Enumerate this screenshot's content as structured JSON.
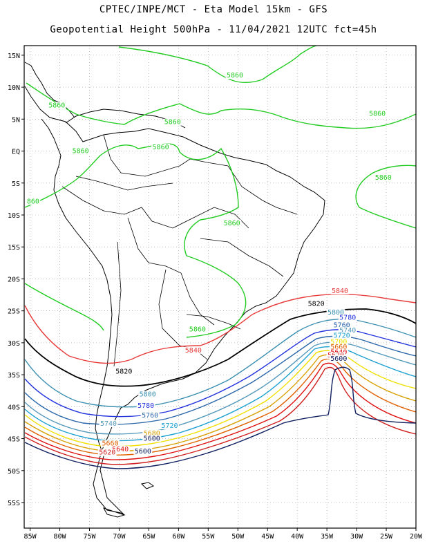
{
  "title": {
    "line1": "CPTEC/INPE/MCT -  Eta Model 15km - GFS",
    "line2": "Geopotential Height 500hPa - 11/04/2021 12UTC fct=45h"
  },
  "axes": {
    "lon_ticks": [
      "85W",
      "80W",
      "75W",
      "70W",
      "65W",
      "60W",
      "55W",
      "50W",
      "45W",
      "40W",
      "35W",
      "30W",
      "25W",
      "20W"
    ],
    "lat_ticks": [
      "15N",
      "10N",
      "5N",
      "EQ",
      "5S",
      "10S",
      "15S",
      "20S",
      "25S",
      "30S",
      "35S",
      "40S",
      "45S",
      "50S",
      "55S"
    ],
    "lon_values": [
      -85,
      -80,
      -75,
      -70,
      -65,
      -60,
      -55,
      -50,
      -45,
      -40,
      -35,
      -30,
      -25,
      -20
    ],
    "lat_values": [
      15,
      10,
      5,
      0,
      -5,
      -10,
      -15,
      -20,
      -25,
      -30,
      -35,
      -40,
      -45,
      -50,
      -55
    ],
    "lon_range": [
      -86,
      -20
    ],
    "lat_range": [
      -59,
      16.5
    ],
    "grid": true
  },
  "contours": [
    {
      "level": "5860",
      "color": "#22cc22"
    },
    {
      "level": "5840",
      "color": "#e83a3a"
    },
    {
      "level": "5820",
      "color": "#000000"
    },
    {
      "level": "5800",
      "color": "#3a8fb0"
    },
    {
      "level": "5780",
      "color": "#2233dd"
    },
    {
      "level": "5760",
      "color": "#2a66aa"
    },
    {
      "level": "5740",
      "color": "#5599bb"
    },
    {
      "level": "5720",
      "color": "#1aa0d0"
    },
    {
      "level": "5700",
      "color": "#f0e000"
    },
    {
      "level": "5680",
      "color": "#d8a000"
    },
    {
      "level": "5660",
      "color": "#e06000"
    },
    {
      "level": "5640",
      "color": "#e01010"
    },
    {
      "level": "5620",
      "color": "#d02020"
    },
    {
      "level": "5600",
      "color": "#102060"
    }
  ],
  "labels": [
    {
      "text": "5860",
      "lon": -50.5,
      "lat": 11.5,
      "color": "#22cc22"
    },
    {
      "text": "5860",
      "lon": -80.5,
      "lat": 6.8,
      "color": "#22cc22"
    },
    {
      "text": "5860",
      "lon": -26.5,
      "lat": 5.5,
      "color": "#22cc22"
    },
    {
      "text": "5860",
      "lon": -61,
      "lat": 4.2,
      "color": "#22cc22"
    },
    {
      "text": "5860",
      "lon": -63,
      "lat": 0.3,
      "color": "#22cc22"
    },
    {
      "text": "5860",
      "lon": -76.5,
      "lat": -0.3,
      "color": "#22cc22"
    },
    {
      "text": "5860",
      "lon": -25.5,
      "lat": -4.5,
      "color": "#22cc22"
    },
    {
      "text": "860",
      "lon": -84.5,
      "lat": -8.2,
      "color": "#22cc22"
    },
    {
      "text": "5860",
      "lon": -51,
      "lat": -11.6,
      "color": "#22cc22"
    },
    {
      "text": "5860",
      "lon": -56.8,
      "lat": -28.2,
      "color": "#22cc22"
    },
    {
      "text": "5840",
      "lon": -57.5,
      "lat": -31.5,
      "color": "#e83a3a"
    },
    {
      "text": "5840",
      "lon": -32.8,
      "lat": -22.2,
      "color": "#e83a3a"
    },
    {
      "text": "5820",
      "lon": -36.8,
      "lat": -24.2,
      "color": "#000000"
    },
    {
      "text": "5800",
      "lon": -33.5,
      "lat": -25.6,
      "color": "#3a8fb0"
    },
    {
      "text": "5780",
      "lon": -31.5,
      "lat": -26.4,
      "color": "#2233dd"
    },
    {
      "text": "5760",
      "lon": -32.5,
      "lat": -27.6,
      "color": "#2a66aa"
    },
    {
      "text": "5740",
      "lon": -31.5,
      "lat": -28.4,
      "color": "#5599bb"
    },
    {
      "text": "5720",
      "lon": -32.5,
      "lat": -29.2,
      "color": "#1aa0d0"
    },
    {
      "text": "5700",
      "lon": -33,
      "lat": -30.2,
      "color": "#f0e000"
    },
    {
      "text": "5660",
      "lon": -33,
      "lat": -31.0,
      "color": "#e06000"
    },
    {
      "text": "5640",
      "lon": -33,
      "lat": -31.8,
      "color": "#e01010"
    },
    {
      "text": "5620",
      "lon": -33.5,
      "lat": -32.3,
      "color": "#d02020"
    },
    {
      "text": "5600",
      "lon": -33,
      "lat": -32.8,
      "color": "#102060"
    },
    {
      "text": "5820",
      "lon": -69.2,
      "lat": -34.8,
      "color": "#000000"
    },
    {
      "text": "5800",
      "lon": -65.2,
      "lat": -38.4,
      "color": "#3a8fb0"
    },
    {
      "text": "5780",
      "lon": -65.5,
      "lat": -40.2,
      "color": "#2233dd"
    },
    {
      "text": "5760",
      "lon": -64.8,
      "lat": -41.7,
      "color": "#2a66aa"
    },
    {
      "text": "5740",
      "lon": -71.8,
      "lat": -43.0,
      "color": "#5599bb"
    },
    {
      "text": "5720",
      "lon": -61.5,
      "lat": -43.3,
      "color": "#1aa0d0"
    },
    {
      "text": "5680",
      "lon": -64.5,
      "lat": -44.5,
      "color": "#d8a000"
    },
    {
      "text": "5660",
      "lon": -71.5,
      "lat": -46.1,
      "color": "#e06000"
    },
    {
      "text": "5640",
      "lon": -69.8,
      "lat": -47.0,
      "color": "#e01010"
    },
    {
      "text": "5620",
      "lon": -72,
      "lat": -47.5,
      "color": "#d02020"
    },
    {
      "text": "5600",
      "lon": -64.5,
      "lat": -45.3,
      "color": "#102060"
    },
    {
      "text": "5600",
      "lon": -66,
      "lat": -47.3,
      "color": "#102060"
    }
  ]
}
